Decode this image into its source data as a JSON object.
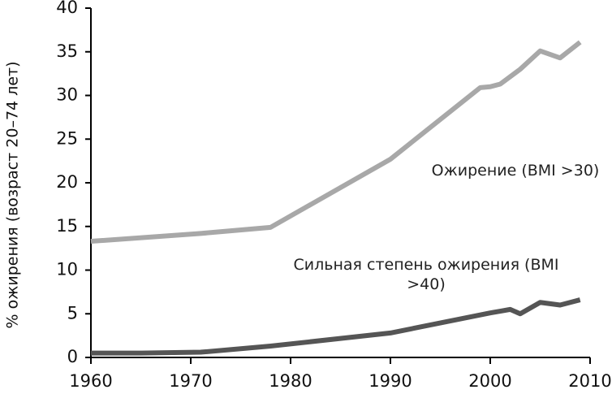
{
  "chart_data": {
    "type": "line",
    "y_label": "% ожирения (возраст 20–74 лет)",
    "series": [
      {
        "name": "Ожирение (BMI >30)",
        "color": "#a8a8a8",
        "x": [
          1960,
          1971,
          1978,
          1990,
          1999,
          2000,
          2001,
          2003,
          2005,
          2007,
          2009
        ],
        "values": [
          13.3,
          14.2,
          14.9,
          22.7,
          30.9,
          31.0,
          31.3,
          33.0,
          35.1,
          34.3,
          36.1
        ]
      },
      {
        "name": "Сильная степень ожирения (BMI >40)",
        "color": "#555555",
        "x": [
          1960,
          1965,
          1971,
          1978,
          1990,
          2000,
          2001,
          2002,
          2003,
          2005,
          2007,
          2009
        ],
        "values": [
          0.5,
          0.5,
          0.6,
          1.3,
          2.8,
          5.1,
          5.3,
          5.5,
          5.0,
          6.3,
          6.0,
          6.6
        ]
      }
    ],
    "xlim": [
      1960,
      2010
    ],
    "xticks": [
      1960,
      1970,
      1980,
      1990,
      2000,
      2010
    ],
    "ylim": [
      0,
      40
    ],
    "yticks": [
      0,
      5,
      10,
      15,
      20,
      25,
      30,
      35,
      40
    ],
    "grid": false
  }
}
